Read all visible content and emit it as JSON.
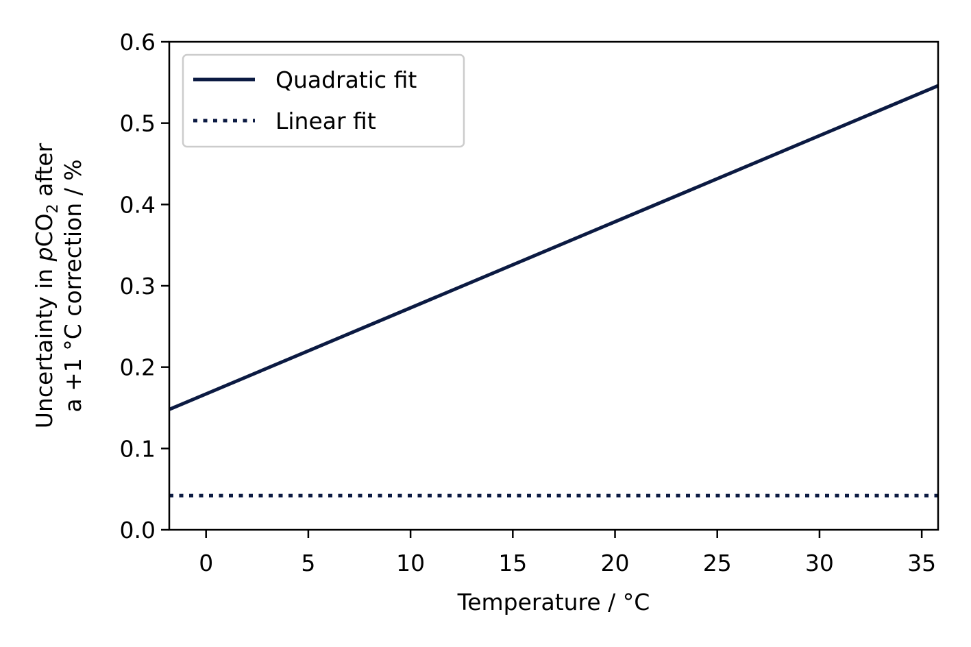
{
  "chart_data": {
    "type": "line",
    "title": "",
    "xlabel": "Temperature / °C",
    "ylabel": {
      "line1_prefix": "Uncertainty in ",
      "line1_italic": "p",
      "line1_mid": "CO",
      "line1_sub": "2",
      "line1_suffix": " after",
      "line2": "a +1 °C correction / %"
    },
    "xlim": [
      -1.8,
      35.8
    ],
    "ylim": [
      0.0,
      0.6
    ],
    "xticks": [
      0,
      5,
      10,
      15,
      20,
      25,
      30,
      35
    ],
    "yticks": [
      "0.0",
      "0.1",
      "0.2",
      "0.3",
      "0.4",
      "0.5",
      "0.6"
    ],
    "grid": false,
    "legend_position": "top-left",
    "series": [
      {
        "name": "Quadratic fit",
        "style": "solid",
        "color": "#0b1a42",
        "x": [
          -1.8,
          35.8
        ],
        "y": [
          0.148,
          0.546
        ]
      },
      {
        "name": "Linear fit",
        "style": "dotted",
        "color": "#0b1a42",
        "x": [
          -1.8,
          35.8
        ],
        "y": [
          0.042,
          0.042
        ]
      }
    ]
  }
}
